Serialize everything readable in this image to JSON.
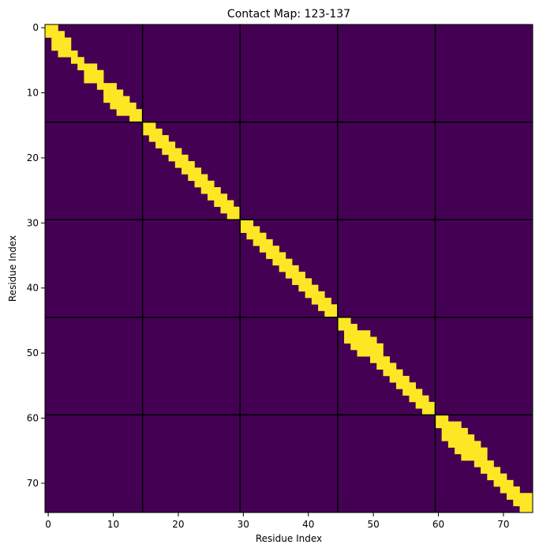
{
  "chart_data": {
    "type": "heatmap",
    "title": "Contact Map: 123-137",
    "xlabel": "Residue Index",
    "ylabel": "Residue Index",
    "size": 75,
    "xlim": [
      -0.5,
      74.5
    ],
    "ylim": [
      74.5,
      -0.5
    ],
    "xticks": [
      0,
      10,
      20,
      30,
      40,
      50,
      60,
      70
    ],
    "yticks": [
      0,
      10,
      20,
      30,
      40,
      50,
      60,
      70
    ],
    "background_color": "#440154",
    "contact_color": "#fde725",
    "boundary_color": "#000000",
    "segment_boundaries": [
      14.5,
      29.5,
      44.5,
      59.5
    ],
    "contact_width": 1,
    "grid": false,
    "legend": "none",
    "contacts": [
      [
        0,
        [
          0,
          1
        ]
      ],
      [
        1,
        [
          0,
          2
        ]
      ],
      [
        2,
        [
          1,
          3
        ]
      ],
      [
        3,
        [
          1,
          3
        ]
      ],
      [
        4,
        [
          2,
          4
        ]
      ],
      [
        5,
        [
          4,
          5
        ]
      ],
      [
        6,
        [
          5,
          7
        ]
      ],
      [
        7,
        [
          6,
          8
        ]
      ],
      [
        8,
        [
          6,
          8
        ]
      ],
      [
        9,
        [
          8,
          10
        ]
      ],
      [
        10,
        [
          9,
          11
        ]
      ],
      [
        11,
        [
          9,
          12
        ]
      ],
      [
        12,
        [
          10,
          13
        ]
      ],
      [
        13,
        [
          11,
          14
        ]
      ],
      [
        14,
        [
          13,
          14
        ]
      ],
      [
        15,
        [
          15,
          16
        ]
      ],
      [
        16,
        [
          15,
          17
        ]
      ],
      [
        17,
        [
          16,
          18
        ]
      ],
      [
        18,
        [
          17,
          19
        ]
      ],
      [
        19,
        [
          18,
          20
        ]
      ],
      [
        20,
        [
          19,
          21
        ]
      ],
      [
        21,
        [
          20,
          22
        ]
      ],
      [
        22,
        [
          21,
          23
        ]
      ],
      [
        23,
        [
          22,
          24
        ]
      ],
      [
        24,
        [
          23,
          25
        ]
      ],
      [
        25,
        [
          24,
          26
        ]
      ],
      [
        26,
        [
          25,
          27
        ]
      ],
      [
        27,
        [
          26,
          28
        ]
      ],
      [
        28,
        [
          27,
          29
        ]
      ],
      [
        29,
        [
          28,
          29
        ]
      ],
      [
        30,
        [
          30,
          31
        ]
      ],
      [
        31,
        [
          30,
          32
        ]
      ],
      [
        32,
        [
          31,
          33
        ]
      ],
      [
        33,
        [
          32,
          34
        ]
      ],
      [
        34,
        [
          33,
          35
        ]
      ],
      [
        35,
        [
          34,
          36
        ]
      ],
      [
        36,
        [
          35,
          37
        ]
      ],
      [
        37,
        [
          36,
          38
        ]
      ],
      [
        38,
        [
          37,
          39
        ]
      ],
      [
        39,
        [
          38,
          40
        ]
      ],
      [
        40,
        [
          39,
          41
        ]
      ],
      [
        41,
        [
          40,
          42
        ]
      ],
      [
        42,
        [
          41,
          43
        ]
      ],
      [
        43,
        [
          42,
          44
        ]
      ],
      [
        44,
        [
          43,
          44
        ]
      ],
      [
        45,
        [
          45,
          46
        ]
      ],
      [
        46,
        [
          45,
          47
        ]
      ],
      [
        47,
        [
          46,
          49
        ]
      ],
      [
        48,
        [
          46,
          50
        ]
      ],
      [
        49,
        [
          47,
          51
        ]
      ],
      [
        50,
        [
          48,
          51
        ]
      ],
      [
        51,
        [
          50,
          52
        ]
      ],
      [
        52,
        [
          51,
          53
        ]
      ],
      [
        53,
        [
          52,
          54
        ]
      ],
      [
        54,
        [
          53,
          55
        ]
      ],
      [
        55,
        [
          54,
          56
        ]
      ],
      [
        56,
        [
          55,
          57
        ]
      ],
      [
        57,
        [
          56,
          58
        ]
      ],
      [
        58,
        [
          57,
          59
        ]
      ],
      [
        59,
        [
          58,
          59
        ]
      ],
      [
        60,
        [
          60,
          61
        ]
      ],
      [
        61,
        [
          60,
          63
        ]
      ],
      [
        62,
        [
          61,
          64
        ]
      ],
      [
        63,
        [
          61,
          65
        ]
      ],
      [
        64,
        [
          62,
          66
        ]
      ],
      [
        65,
        [
          63,
          67
        ]
      ],
      [
        66,
        [
          64,
          67
        ]
      ],
      [
        67,
        [
          66,
          68
        ]
      ],
      [
        68,
        [
          67,
          69
        ]
      ],
      [
        69,
        [
          68,
          70
        ]
      ],
      [
        70,
        [
          69,
          71
        ]
      ],
      [
        71,
        [
          70,
          72
        ]
      ],
      [
        72,
        [
          71,
          74
        ]
      ],
      [
        73,
        [
          72,
          74
        ]
      ],
      [
        74,
        [
          73,
          74
        ]
      ]
    ]
  }
}
